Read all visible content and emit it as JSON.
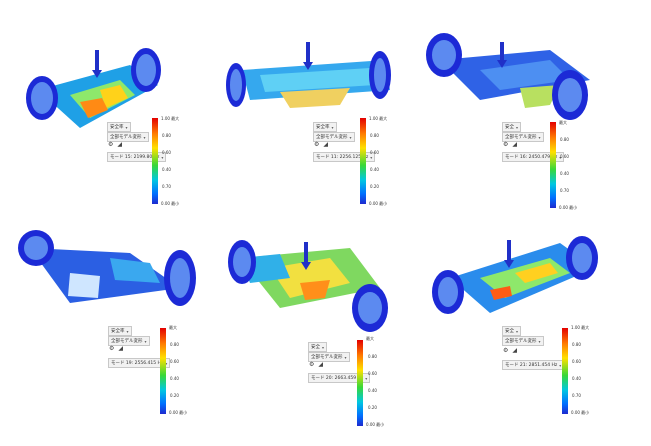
{
  "panels": [
    {
      "dropdown1": "安全率",
      "dropdown2": "全部モデル変形",
      "mode": "モード 15: 2199.80 Hz",
      "legend_top": "1.00 最大",
      "legend_ticks": [
        "0.80",
        "0.60",
        "0.40",
        "0.70"
      ],
      "legend_bottom": "0.00 最小"
    },
    {
      "dropdown1": "安全率",
      "dropdown2": "全部モデル変形",
      "mode": "モード 11: 2256.125 Hz",
      "legend_top": "1.00 最大",
      "legend_ticks": [
        "0.80",
        "0.60",
        "0.40",
        "0.20"
      ],
      "legend_bottom": "0.00 最小"
    },
    {
      "dropdown1": "安全",
      "dropdown2": "全部モデル変形",
      "mode": "モード 16: 2450.479 Hz",
      "legend_top": "最大",
      "legend_ticks": [
        "0.80",
        "0.60",
        "0.40",
        "0.70"
      ],
      "legend_bottom": "0.00 最小"
    },
    {
      "dropdown1": "安全率",
      "dropdown2": "全部モデル変形",
      "mode": "モード 19: 2556.415 Hz",
      "legend_top": "最大",
      "legend_ticks": [
        "0.80",
        "0.60",
        "0.40",
        "0.20"
      ],
      "legend_bottom": "0.00 最小"
    },
    {
      "dropdown1": "安全",
      "dropdown2": "全部モデル変形",
      "mode": "モード 20: 2663.459 Hz",
      "legend_top": "最大",
      "legend_ticks": [
        "0.80",
        "0.60",
        "0.40",
        "0.20"
      ],
      "legend_bottom": "0.00 最小"
    },
    {
      "dropdown1": "安全",
      "dropdown2": "全部モデル変形",
      "mode": "モード 21: 2851.454 Hz",
      "legend_top": "1.00 最大",
      "legend_ticks": [
        "0.80",
        "0.60",
        "0.40",
        "0.70"
      ],
      "legend_bottom": "0.00 最小"
    }
  ]
}
